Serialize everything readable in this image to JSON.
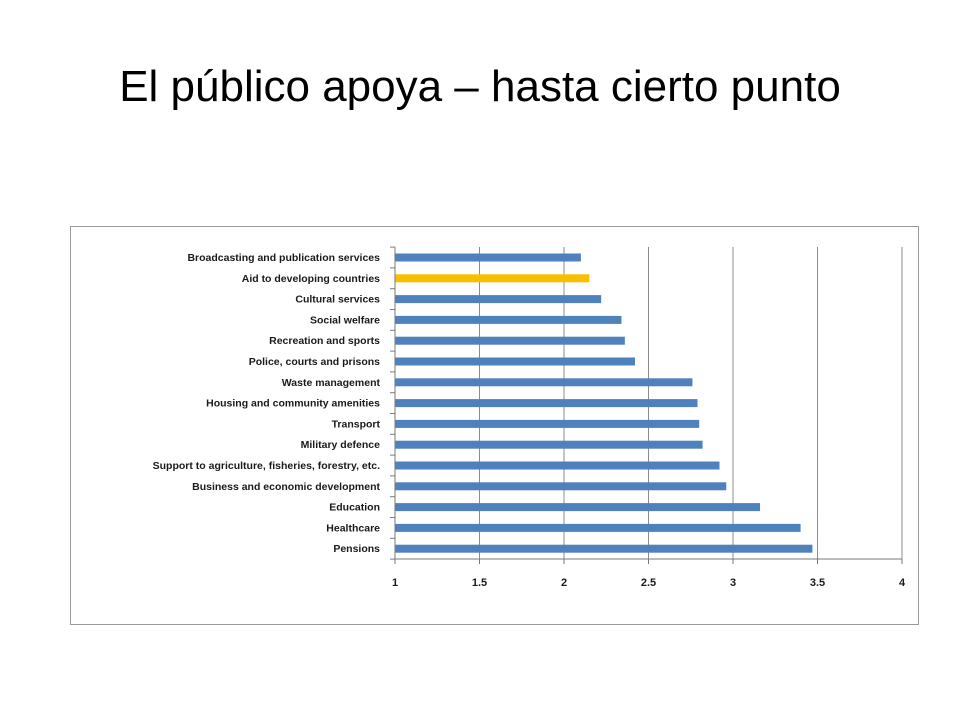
{
  "slide": {
    "title": "El público apoya – hasta cierto punto"
  },
  "chart_data": {
    "type": "bar",
    "orientation": "horizontal",
    "categories": [
      "Broadcasting and publication services",
      "Aid to developing countries",
      "Cultural services",
      "Social welfare",
      "Recreation and sports",
      "Police, courts and prisons",
      "Waste management",
      "Housing and community amenities",
      "Transport",
      "Military defence",
      "Support to agriculture, fisheries, forestry, etc.",
      "Business and economic development",
      "Education",
      "Healthcare",
      "Pensions"
    ],
    "values": [
      2.1,
      2.15,
      2.22,
      2.34,
      2.36,
      2.42,
      2.76,
      2.79,
      2.8,
      2.82,
      2.92,
      2.96,
      3.16,
      3.4,
      3.47
    ],
    "xlim": [
      1,
      4
    ],
    "xticks": [
      "1",
      "1.5",
      "2",
      "2.5",
      "3",
      "3.5",
      "4"
    ],
    "xtick_values": [
      1,
      1.5,
      2,
      2.5,
      3,
      3.5,
      4
    ],
    "bar_color": "#4F81BD",
    "highlight_color": "#F9BE00",
    "highlight_category": "Aid to developing countries",
    "grid": "vertical",
    "title": "",
    "xlabel": "",
    "ylabel": "",
    "legend": "none"
  }
}
